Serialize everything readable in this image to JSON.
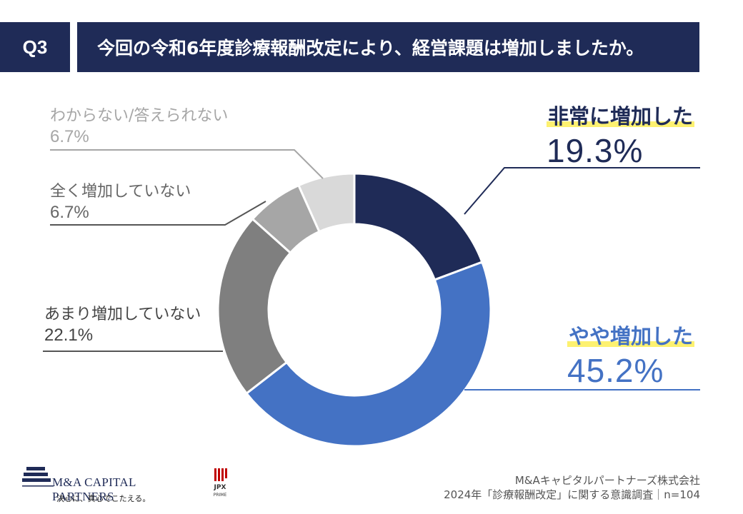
{
  "header": {
    "q_label": "Q3",
    "title": "今回の令和6年度診療報酬改定により、経営課題は増加しましたか。"
  },
  "chart_data": {
    "type": "pie",
    "donut": true,
    "title": "今回の令和6年度診療報酬改定により、経営課題は増加しましたか。",
    "categories": [
      "非常に増加した",
      "やや増加した",
      "あまり増加していない",
      "全く増加していない",
      "わからない/答えられない"
    ],
    "values": [
      19.3,
      45.2,
      22.1,
      6.7,
      6.7
    ],
    "labels": [
      "19.3%",
      "45.2%",
      "22.1%",
      "6.7%",
      "6.7%"
    ],
    "colors": [
      "#1f2b57",
      "#4472c4",
      "#7f7f7f",
      "#a6a6a6",
      "#d9d9d9"
    ],
    "n": "n=104"
  },
  "footer": {
    "logo_name": "M&A CAPITAL PARTNERS",
    "logo_tagline": "決心に、真心でこたえる。",
    "jpx_text": "JPX",
    "jpx_sub": "PRIME",
    "company": "M&Aキャピタルパートナーズ株式会社",
    "survey": "2024年「診療報酬改定」に関する意識調査｜n=104"
  }
}
